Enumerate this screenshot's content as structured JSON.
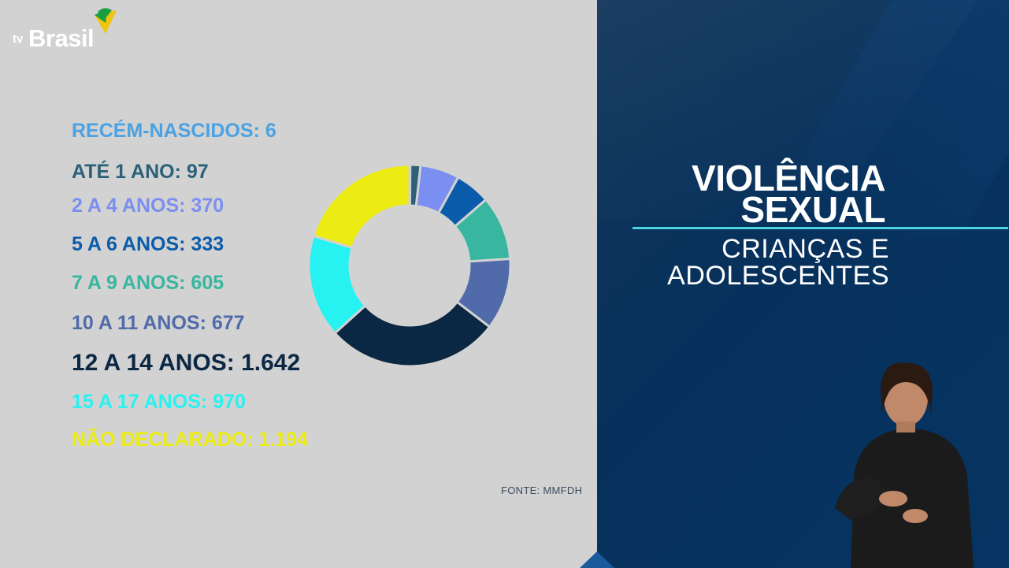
{
  "logo": {
    "prefix": "tv",
    "name": "Brasil"
  },
  "colors": {
    "recem": "#4aa2e2",
    "ate1": "#2b6178",
    "a2_4": "#7b8ff0",
    "a5_6": "#0b5bab",
    "a7_9": "#38b6a0",
    "a10_11": "#506aaa",
    "a12_14": "#0a2743",
    "a15_17": "#27f2f2",
    "nao": "#ecec12"
  },
  "chart_data": {
    "type": "pie",
    "style": "donut",
    "categories": [
      "RECÉM-NASCIDOS",
      "ATÉ 1 ANO",
      "2 A 4 ANOS",
      "5 A 6 ANOS",
      "7 A 9 ANOS",
      "10 A 11 ANOS",
      "12 A 14 ANOS",
      "15 A 17 ANOS",
      "NÃO DECLARADO"
    ],
    "values": [
      6,
      97,
      370,
      333,
      605,
      677,
      1642,
      970,
      1194
    ],
    "labels": [
      "RECÉM-NASCIDOS: 6",
      "ATÉ 1 ANO: 97",
      "2 A 4 ANOS: 370",
      "5 A 6 ANOS: 333",
      "7 A 9 ANOS: 605",
      "10 A 11 ANOS: 677",
      "12 A 14 ANOS: 1.642",
      "15 A 17 ANOS: 970",
      "NÃO DECLARADO: 1.194"
    ],
    "slice_colors": [
      "#4aa2e2",
      "#2b6178",
      "#7b8ff0",
      "#0b5bab",
      "#38b6a0",
      "#506aaa",
      "#0a2743",
      "#27f2f2",
      "#ecec12"
    ]
  },
  "source": "FONTE: MMFDH",
  "title": {
    "line1": "VIOLÊNCIA",
    "line2": "SEXUAL"
  },
  "subtitle": {
    "line1": "CRIANÇAS E",
    "line2": "ADOLESCENTES"
  }
}
